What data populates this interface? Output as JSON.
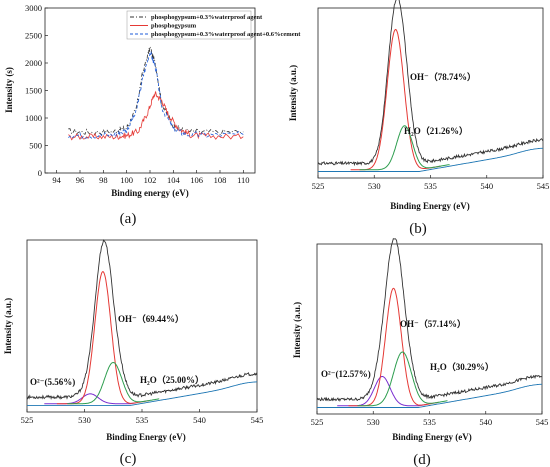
{
  "chart_data": [
    {
      "type": "line",
      "panel_label": "(a)",
      "xlabel": "Binding energy (eV)",
      "ylabel": "Intensity (s)",
      "xlim": [
        93,
        111
      ],
      "ylim": [
        0,
        3000
      ],
      "xticks": [
        "94",
        "96",
        "98",
        "100",
        "102",
        "104",
        "106",
        "108",
        "110"
      ],
      "yticks": [
        "0",
        "500",
        "1000",
        "1500",
        "2000",
        "2500",
        "3000"
      ],
      "legend_position": "top-right",
      "series": [
        {
          "name": "phosphogypsum+0.3%waterproof agent",
          "color": "#333333",
          "style": "dashdot",
          "x": [
            95,
            97,
            99,
            100,
            100.8,
            101.4,
            102,
            102.5,
            103,
            104,
            105,
            107,
            110
          ],
          "values": [
            760,
            740,
            760,
            820,
            1150,
            1850,
            2280,
            1950,
            1250,
            850,
            760,
            740,
            750
          ]
        },
        {
          "name": "phosphogypsum",
          "color": "#e53935",
          "style": "solid",
          "x": [
            95,
            97,
            99,
            100,
            101,
            101.8,
            102.4,
            103,
            103.6,
            104.5,
            105.5,
            107,
            110
          ],
          "values": [
            660,
            660,
            660,
            680,
            760,
            1100,
            1450,
            1320,
            1050,
            800,
            690,
            670,
            660
          ]
        },
        {
          "name": "phosphogypsum+0.3%waterproof agent+0.6%cement",
          "color": "#1e5bd8",
          "style": "dashed",
          "x": [
            95,
            97,
            99,
            100,
            100.8,
            101.4,
            102,
            102.5,
            103,
            104,
            105,
            107,
            110
          ],
          "values": [
            690,
            680,
            700,
            780,
            1100,
            1750,
            2200,
            1900,
            1200,
            800,
            700,
            690,
            700
          ]
        }
      ]
    },
    {
      "type": "line",
      "panel_label": "(b)",
      "xlabel": "Binding Energy (eV)",
      "ylabel": "Intensity (a.u.)",
      "xlim": [
        525,
        545
      ],
      "ylim": [
        0,
        1
      ],
      "xticks": [
        "525",
        "530",
        "535",
        "540",
        "545"
      ],
      "baseline": 0.0,
      "peaks": [
        {
          "annotation": "OH⁻（78.74%）",
          "center": 531.9,
          "height": 0.86,
          "sigma": 0.75,
          "color": "#e53935"
        },
        {
          "annotation": "H₂O（21.26%）",
          "center": 532.7,
          "height": 0.27,
          "sigma": 0.7,
          "color": "#2e9e4f"
        }
      ]
    },
    {
      "type": "line",
      "panel_label": "(c)",
      "xlabel": "Binding Energy (eV)",
      "ylabel": "Intensity (a.u.)",
      "xlim": [
        525,
        545
      ],
      "ylim": [
        0,
        1
      ],
      "xticks": [
        "525",
        "530",
        "535",
        "540",
        "545"
      ],
      "baseline": 0.0,
      "peaks": [
        {
          "annotation": "O²⁻(5.56%)",
          "center": 530.5,
          "height": 0.06,
          "sigma": 0.7,
          "color": "#7b2fd0"
        },
        {
          "annotation": "OH⁻（69.44%）",
          "center": 531.6,
          "height": 0.8,
          "sigma": 0.7,
          "color": "#e53935"
        },
        {
          "annotation": "H₂O（25.00%）",
          "center": 532.5,
          "height": 0.25,
          "sigma": 0.75,
          "color": "#2e9e4f"
        }
      ]
    },
    {
      "type": "line",
      "panel_label": "(d)",
      "xlabel": "Binding Energy (eV)",
      "ylabel": "Intensity (a.u.)",
      "xlim": [
        525,
        545
      ],
      "ylim": [
        0,
        1
      ],
      "xticks": [
        "525",
        "530",
        "535",
        "540",
        "545"
      ],
      "baseline": 0.0,
      "peaks": [
        {
          "annotation": "O²⁻(12.57%)",
          "center": 530.8,
          "height": 0.18,
          "sigma": 0.7,
          "color": "#7b2fd0"
        },
        {
          "annotation": "OH⁻（57.14%）",
          "center": 531.8,
          "height": 0.72,
          "sigma": 0.7,
          "color": "#e53935"
        },
        {
          "annotation": "H₂O（30.29%）",
          "center": 532.6,
          "height": 0.33,
          "sigma": 0.8,
          "color": "#2e9e4f"
        }
      ]
    }
  ],
  "colors": {
    "envelope": "#333333",
    "background_line": "#1f77b4"
  }
}
